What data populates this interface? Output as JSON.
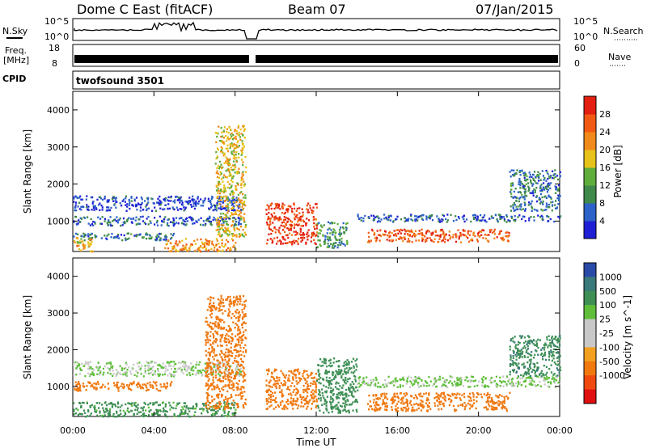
{
  "header": {
    "station": "Dome C East (fitACF)",
    "beam": "Beam 07",
    "date": "07/Jan/2015"
  },
  "strips": {
    "nsky_label": "N.Sky",
    "nsky_tick_top": "10^5",
    "nsky_tick_bottom": "10^0",
    "nsearch_label": "N.Search",
    "nsearch_tick_top": "10^5",
    "nsearch_tick_bottom": "10^0",
    "freq_label_1": "Freq.",
    "freq_label_2": "[MHz]",
    "freq_tick_top": "18",
    "freq_tick_bottom": "8",
    "nave_label": "Nave",
    "nave_tick_top": "60",
    "nave_tick_bottom": "0",
    "cpid_label": "CPID",
    "cpid_value": "twofsound 3501"
  },
  "colors": {
    "power": [
      "#1f1fd6",
      "#2d62c8",
      "#3f8a4a",
      "#5fae3c",
      "#e6c21a",
      "#f08a1a",
      "#f25a14",
      "#e21f10"
    ],
    "velocity": [
      "#e01010",
      "#f04a10",
      "#f0780f",
      "#f3a020",
      "#c8c8c8",
      "#c8c8c8",
      "#5fbf3a",
      "#3e8f55",
      "#3a7a7a",
      "#2a4aa8"
    ],
    "background": "#ffffff"
  },
  "chart_data": [
    {
      "type": "heatmap",
      "name": "Power panel",
      "ylabel": "Slant Range [km]",
      "yticks": [
        "1000",
        "2000",
        "3000",
        "4000"
      ],
      "ylim": [
        180,
        4500
      ],
      "xlim": [
        0,
        24
      ],
      "colorbar_label": "Power [dB]",
      "colorbar_ticks": [
        "4",
        "8",
        "12",
        "16",
        "20",
        "24",
        "28"
      ],
      "colorbar_range": [
        0,
        32
      ],
      "regions": [
        {
          "t0": 0.0,
          "t1": 8.3,
          "r0": 1300,
          "r1": 1700,
          "power": 4
        },
        {
          "t0": 0.0,
          "t1": 8.3,
          "r0": 900,
          "r1": 1150,
          "power": 6
        },
        {
          "t0": 0.0,
          "t1": 5.0,
          "r0": 500,
          "r1": 700,
          "power": 8
        },
        {
          "t0": 4.5,
          "t1": 8.0,
          "r0": 200,
          "r1": 550,
          "power": 22
        },
        {
          "t0": 7.0,
          "t1": 8.5,
          "r0": 600,
          "r1": 3600,
          "power": 18
        },
        {
          "t0": 9.5,
          "t1": 12.0,
          "r0": 400,
          "r1": 1500,
          "power": 28
        },
        {
          "t0": 12.0,
          "t1": 13.5,
          "r0": 300,
          "r1": 1000,
          "power": 10
        },
        {
          "t0": 14.5,
          "t1": 21.5,
          "r0": 450,
          "r1": 800,
          "power": 26
        },
        {
          "t0": 14.0,
          "t1": 24.0,
          "r0": 1000,
          "r1": 1200,
          "power": 6
        },
        {
          "t0": 21.5,
          "t1": 24.0,
          "r0": 1300,
          "r1": 2400,
          "power": 8
        },
        {
          "t0": 0.0,
          "t1": 1.0,
          "r0": 200,
          "r1": 600,
          "power": 20
        }
      ]
    },
    {
      "type": "heatmap",
      "name": "Velocity panel",
      "ylabel": "Slant Range [km]",
      "yticks": [
        "1000",
        "2000",
        "3000",
        "4000"
      ],
      "ylim": [
        180,
        4500
      ],
      "xlim": [
        0,
        24
      ],
      "xlabel": "Time UT",
      "xticks": [
        "00:00",
        "04:00",
        "08:00",
        "12:00",
        "16:00",
        "20:00",
        "00:00"
      ],
      "colorbar_label": "Velocity [m s^-1]",
      "colorbar_ticks": [
        "1000",
        "500",
        "100",
        "25",
        "-25",
        "-100",
        "-500",
        "-1000"
      ],
      "regions": [
        {
          "t0": 0.0,
          "t1": 8.3,
          "r0": 1300,
          "r1": 1700,
          "velocity": 25
        },
        {
          "t0": 0.0,
          "t1": 5.0,
          "r0": 900,
          "r1": 1150,
          "velocity": -300
        },
        {
          "t0": 0.0,
          "t1": 8.0,
          "r0": 200,
          "r1": 600,
          "velocity": 150
        },
        {
          "t0": 6.5,
          "t1": 8.5,
          "r0": 400,
          "r1": 3500,
          "velocity": -300
        },
        {
          "t0": 9.5,
          "t1": 12.0,
          "r0": 400,
          "r1": 1500,
          "velocity": -200
        },
        {
          "t0": 12.0,
          "t1": 14.0,
          "r0": 300,
          "r1": 1800,
          "velocity": 300
        },
        {
          "t0": 14.5,
          "t1": 21.5,
          "r0": 350,
          "r1": 850,
          "velocity": -250
        },
        {
          "t0": 14.0,
          "t1": 24.0,
          "r0": 1000,
          "r1": 1300,
          "velocity": 30
        },
        {
          "t0": 21.5,
          "t1": 24.0,
          "r0": 1300,
          "r1": 2400,
          "velocity": 400
        }
      ]
    }
  ]
}
